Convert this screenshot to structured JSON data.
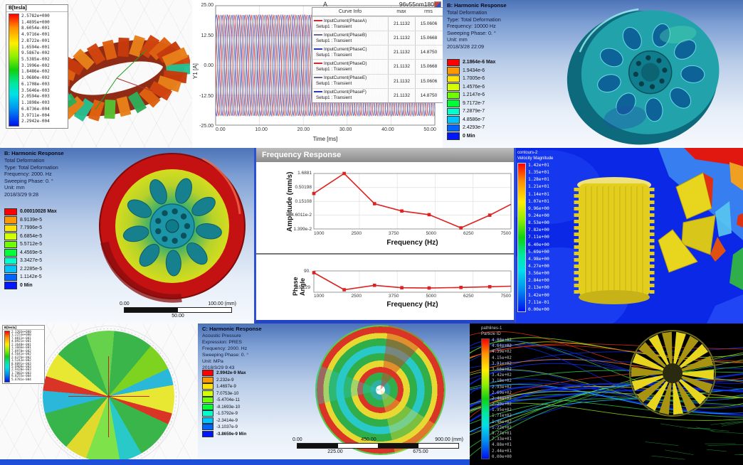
{
  "colors": {
    "accent_blue": "#1e4fd8",
    "legend_chips": [
      "#fe0000",
      "#ff9700",
      "#ffe400",
      "#d3ff00",
      "#70ff00",
      "#00ff36",
      "#00ffcc",
      "#00c4ff",
      "#0064ff",
      "#0016ff"
    ],
    "plot_red": "#d02a2a",
    "plot_blue": "#2a3ab8",
    "plot_dark": "#6a6a8a",
    "freq_line": "#dd2222"
  },
  "maxwell_a": {
    "legend_title": "B[tesla]",
    "values": [
      "2.5782e+000",
      "1.4895e+000",
      "8.6054e-001",
      "4.9716e-001",
      "2.8722e-001",
      "1.6594e-001",
      "9.5867e-002",
      "5.5385e-002",
      "3.1996e-002",
      "1.8486e-002",
      "1.0680e-002",
      "6.1708e-003",
      "3.5646e-003",
      "2.0594e-003",
      "1.1898e-003",
      "6.8736e-004",
      "3.9711e-004",
      "2.2942e-004"
    ]
  },
  "current_plot": {
    "title": "A",
    "model": "96v55nm180",
    "ylabel": "Y1 [A]",
    "xlabel": "Time [ms]",
    "yticks": [
      "25.00",
      "12.50",
      "0.00",
      "-12.50",
      "-25.00"
    ],
    "xticks": [
      "0.00",
      "10.00",
      "20.00",
      "30.00",
      "40.00",
      "50.00"
    ],
    "legend_header": [
      "Curve Info",
      "max",
      "rms"
    ]
  },
  "harmonic_b10000": {
    "header": [
      "B: Harmonic Response",
      "Total Deformation",
      "Type: Total Deformation",
      "Frequency: 10000 Hz",
      "Sweeping Phase: 0. °",
      "Unit: mm",
      "2018/3/28 22:09"
    ],
    "legend": [
      "2.1864e-6 Max",
      "1.9434e-6",
      "1.7005e-6",
      "1.4576e-6",
      "1.2147e-6",
      "9.7172e-7",
      "7.2879e-7",
      "4.8586e-7",
      "2.4293e-7",
      "0 Min"
    ]
  },
  "harmonic_b2000": {
    "header": [
      "B: Harmonic Response",
      "Total Deformation",
      "Type: Total Deformation",
      "Frequency: 2000. Hz",
      "Sweeping Phase: 0. °",
      "Unit: mm",
      "2018/3/29 9:28"
    ],
    "legend": [
      "0.00010028 Max",
      "8.9139e-5",
      "7.7996e-5",
      "6.6854e-5",
      "5.5712e-5",
      "4.4569e-5",
      "3.3427e-5",
      "2.2285e-5",
      "1.1142e-5",
      "0 Min"
    ],
    "scale": {
      "left": "0.00",
      "right": "100.00 (mm)",
      "mid": "50.00"
    }
  },
  "freq_window": {
    "title": "Frequency Response",
    "amp_ylabel": "Amplitude (mm/s)",
    "phase_ylabel": "Phase Angle",
    "xlabel": "Frequency (Hz)",
    "amp_yticks": [
      "1.6881",
      "0.50198",
      "0.15108",
      "4.6011e-2",
      "1.399e-2"
    ],
    "phase_yticks": [
      "90.",
      "-150.29"
    ],
    "xticks": [
      "1000",
      "2500",
      "3750",
      "5000",
      "6250",
      "7500"
    ]
  },
  "cfd": {
    "legend_title": [
      "contours-2",
      "Velocity Magnitude"
    ],
    "values": [
      "1.42e+01",
      "1.35e+01",
      "1.28e+01",
      "1.21e+01",
      "1.14e+01",
      "1.07e+01",
      "9.96e+00",
      "9.24e+00",
      "8.53e+00",
      "7.82e+00",
      "7.11e+00",
      "6.40e+00",
      "5.69e+00",
      "4.98e+00",
      "4.27e+00",
      "3.56e+00",
      "2.84e+00",
      "2.13e+00",
      "1.42e+00",
      "7.11e-01",
      "0.00e+00"
    ]
  },
  "maxwell_g": {
    "legend_title": "B[tesla]",
    "values": [
      "2.1203e+000",
      "1.2253e+000",
      "7.0811e-001",
      "4.0921e-001",
      "2.3648e-001",
      "1.3666e-001",
      "7.8978e-002",
      "4.5641e-002",
      "2.6376e-002",
      "1.5243e-002",
      "8.8091e-003",
      "5.0909e-003",
      "2.9420e-003",
      "1.7002e-003",
      "9.8255e-004",
      "5.6781e-004"
    ]
  },
  "acoustic": {
    "header": [
      "C: Harmonic Response",
      "Acoustic Pressure",
      "Expression: PRES",
      "Frequency: 2000. Hz",
      "Sweeping Phase: 0. °",
      "Unit: MPa",
      "2018/3/29 9:43"
    ],
    "legend": [
      "2.9942e-9 Max",
      "2.232e-9",
      "1.4697e-9",
      "7.0753e-10",
      "-5.4704e-11",
      "-8.1693e-10",
      "-1.5792e-9",
      "-2.3414e-9",
      "-3.1037e-9",
      "-3.8659e-9 Min"
    ],
    "scale_top": [
      "0.00",
      "450.00",
      "900.00 (mm)"
    ],
    "scale_bottom": [
      "225.00",
      "675.00"
    ]
  },
  "pathlines": {
    "legend_title": [
      "pathlines-1",
      "Particle ID"
    ],
    "values": [
      "4.88e+02",
      "4.64e+02",
      "4.39e+02",
      "4.15e+02",
      "3.91e+02",
      "3.66e+02",
      "3.42e+02",
      "3.18e+02",
      "2.93e+02",
      "2.69e+02",
      "2.44e+02",
      "2.20e+02",
      "1.95e+02",
      "1.71e+02",
      "1.46e+02",
      "1.22e+02",
      "9.77e+01",
      "7.33e+01",
      "4.88e+01",
      "2.44e+01",
      "0.00e+00"
    ]
  },
  "chart_data": [
    {
      "type": "line",
      "title": "A",
      "model_label": "96v55nm180",
      "xlabel": "Time [ms]",
      "ylabel": "Y1 [A]",
      "xlim": [
        0,
        50
      ],
      "ylim": [
        -25,
        25
      ],
      "xticks": [
        0,
        10,
        20,
        30,
        40,
        50
      ],
      "yticks": [
        25,
        12.5,
        0,
        -12.5,
        -25
      ],
      "grid": true,
      "legend_position": "top-right",
      "waveform": {
        "amplitude": 21.1132,
        "period_ms": 2.5,
        "phase_offsets_deg": [
          0,
          120,
          240,
          180,
          300,
          60
        ]
      },
      "series": [
        {
          "name": "InputCurrent(PhaseA)",
          "setup": "Setup1 : Transient",
          "max": "21.1132",
          "rms": "15.0606",
          "color": "#d02a2a"
        },
        {
          "name": "InputCurrent(PhaseB)",
          "setup": "Setup1 : Transient",
          "max": "21.1132",
          "rms": "15.0668",
          "color": "#6a6a8a"
        },
        {
          "name": "InputCurrent(PhaseC)",
          "setup": "Setup1 : Transient",
          "max": "21.1132",
          "rms": "14.8750",
          "color": "#2a3ab8"
        },
        {
          "name": "InputCurrent(PhaseD)",
          "setup": "Setup1 : Transient",
          "max": "21.1132",
          "rms": "15.0668",
          "color": "#d02a2a"
        },
        {
          "name": "InputCurrent(PhaseE)",
          "setup": "Setup1 : Transient",
          "max": "21.1132",
          "rms": "15.0606",
          "color": "#6a6a8a"
        },
        {
          "name": "InputCurrent(PhaseF)",
          "setup": "Setup1 : Transient",
          "max": "21.1132",
          "rms": "14.8750",
          "color": "#2a3ab8"
        }
      ]
    },
    {
      "type": "line",
      "title": "Frequency Response - Amplitude",
      "xlabel": "Frequency (Hz)",
      "ylabel": "Amplitude (mm/s)",
      "yscale": "log",
      "xlim": [
        1000,
        7500
      ],
      "xticks": [
        1000,
        2500,
        3750,
        5000,
        6250,
        7500
      ],
      "yticks": [
        1.6881,
        0.50198,
        0.15108,
        0.046011,
        0.01399
      ],
      "x": [
        1000,
        2000,
        3000,
        3900,
        4800,
        5850,
        6800,
        7500
      ],
      "y": [
        0.3,
        1.6881,
        0.124,
        0.066,
        0.048,
        0.0153,
        0.046,
        0.118
      ],
      "color": "#dd2222",
      "marker": "square",
      "grid": true
    },
    {
      "type": "line",
      "title": "Frequency Response - Phase",
      "xlabel": "Frequency (Hz)",
      "ylabel": "Phase Angle",
      "xlim": [
        1000,
        7500
      ],
      "ylim": [
        -170,
        100
      ],
      "xticks": [
        1000,
        2500,
        3750,
        5000,
        6250,
        7500
      ],
      "yticks": [
        90,
        -150.29
      ],
      "x": [
        1000,
        2000,
        3000,
        3900,
        4800,
        5850,
        6800,
        7500
      ],
      "y": [
        90,
        -150.29,
        -88,
        -122,
        -126,
        -118,
        -108,
        -100
      ],
      "color": "#dd2222",
      "marker": "square"
    }
  ]
}
